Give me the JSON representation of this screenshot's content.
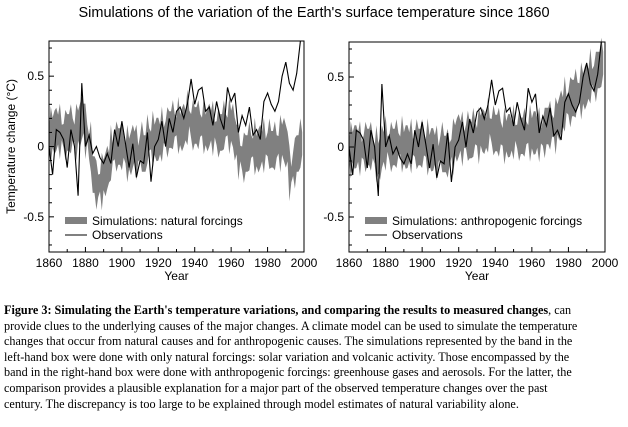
{
  "title": "Simulations of the variation of the Earth's surface temperature since 1860",
  "caption": {
    "bold": "Figure 3: Simulating the Earth's temperature variations, and comparing the results to measured changes",
    "lines": [
      ", can",
      "provide clues to the underlying causes of the major changes.  A climate model can be used to simulate the temperature",
      "changes that occur from natural causes and for anthropogenic causes.  The simulations represented by the band in the",
      "left-hand box were done with only natural forcings: solar variation and volcanic activity.  Those encompassed by the",
      "band in the right-hand box were done with anthropogenic forcings: greenhouse gases and aerosols.  For the latter, the",
      "comparison provides a plausible explanation for a major part of the observed temperature changes over the past",
      "century.  The discrepancy is too large to be explained through model estimates of natural variability alone."
    ]
  },
  "chart_data": [
    {
      "type": "area",
      "xlabel": "Year",
      "ylabel": "Temperature change (°C)",
      "xlim": [
        1860,
        2000
      ],
      "ylim": [
        -0.75,
        0.75
      ],
      "xticks": [
        "1860",
        "1880",
        "1900",
        "1920",
        "1940",
        "1960",
        "1980",
        "2000"
      ],
      "yticks": [
        {
          "v": 0.5,
          "label": "0.5"
        },
        {
          "v": 0,
          "label": "0"
        },
        {
          "v": -0.5,
          "label": "-0.5"
        }
      ],
      "legend": {
        "band": "Simulations: natural forcings",
        "line": "Observations",
        "position": "bottom-left"
      },
      "band_color": "#808080",
      "line_color": "#000000",
      "band": {
        "years_start": 1860,
        "step": 2,
        "half_width": 0.13,
        "center": [
          0.08,
          0.1,
          0.12,
          0.1,
          0.08,
          0.1,
          0.12,
          0.1,
          0.15,
          0.2,
          0.1,
          0.0,
          -0.2,
          -0.28,
          -0.25,
          -0.2,
          -0.15,
          -0.05,
          0.0,
          0.0,
          0.0,
          -0.05,
          -0.05,
          0.0,
          -0.05,
          0.0,
          -0.05,
          0.05,
          0.05,
          0.05,
          0.05,
          0.08,
          0.1,
          0.12,
          0.15,
          0.15,
          0.12,
          0.15,
          0.2,
          0.15,
          0.15,
          0.15,
          0.15,
          0.12,
          0.15,
          0.12,
          0.1,
          0.1,
          0.15,
          0.15,
          0.15,
          0.05,
          -0.05,
          -0.08,
          -0.05,
          0.0,
          0.0,
          -0.03,
          0.0,
          0.0,
          0.02,
          -0.02,
          0.0,
          0.02,
          0.05,
          0.0,
          -0.2,
          -0.12,
          -0.05,
          0.02
        ]
      },
      "observations": {
        "years_start": 1860,
        "step": 2,
        "values": [
          0.0,
          -0.2,
          0.12,
          0.1,
          0.05,
          -0.15,
          0.12,
          0.0,
          -0.35,
          0.45,
          0.0,
          0.08,
          -0.05,
          0.0,
          -0.08,
          -0.12,
          -0.05,
          -0.12,
          0.12,
          0.0,
          0.18,
          0.02,
          -0.15,
          0.02,
          -0.22,
          -0.1,
          -0.12,
          0.1,
          -0.25,
          0.0,
          0.05,
          0.18,
          0.0,
          0.2,
          0.1,
          0.25,
          0.28,
          0.2,
          0.3,
          0.48,
          0.3,
          0.4,
          0.42,
          0.25,
          0.28,
          0.15,
          0.32,
          0.2,
          0.12,
          0.42,
          0.32,
          0.38,
          0.1,
          0.22,
          0.15,
          0.28,
          0.08,
          0.12,
          0.05,
          0.32,
          0.38,
          0.3,
          0.25,
          0.32,
          0.5,
          0.6,
          0.45,
          0.4,
          0.52,
          0.75
        ]
      }
    },
    {
      "type": "area",
      "xlabel": "Year",
      "ylabel": "",
      "xlim": [
        1860,
        2000
      ],
      "ylim": [
        -0.75,
        0.75
      ],
      "xticks": [
        "1860",
        "1880",
        "1900",
        "1920",
        "1940",
        "1960",
        "1980",
        "2000"
      ],
      "yticks": [
        {
          "v": 0.5,
          "label": "0.5"
        },
        {
          "v": 0,
          "label": "0"
        },
        {
          "v": -0.5,
          "label": "-0.5"
        }
      ],
      "legend": {
        "band": "Simulations: anthropogenic forcings",
        "line": "Observations",
        "position": "bottom-left"
      },
      "band_color": "#808080",
      "line_color": "#000000",
      "band": {
        "years_start": 1860,
        "step": 2,
        "half_width": 0.13,
        "center": [
          -0.02,
          0.0,
          0.0,
          -0.02,
          0.0,
          0.0,
          0.0,
          -0.05,
          -0.08,
          0.0,
          0.02,
          0.0,
          0.0,
          0.02,
          0.02,
          0.0,
          0.0,
          0.0,
          0.02,
          0.0,
          0.02,
          0.0,
          -0.02,
          -0.02,
          -0.05,
          0.0,
          -0.05,
          -0.05,
          0.0,
          0.05,
          0.08,
          0.05,
          0.08,
          0.05,
          0.1,
          0.08,
          0.12,
          0.1,
          0.15,
          0.12,
          0.1,
          0.1,
          0.08,
          0.08,
          0.08,
          0.1,
          0.08,
          0.08,
          0.1,
          0.1,
          0.1,
          0.1,
          0.08,
          0.1,
          0.15,
          0.15,
          0.15,
          0.2,
          0.25,
          0.3,
          0.32,
          0.35,
          0.38,
          0.4,
          0.42,
          0.45,
          0.5,
          0.5,
          0.55,
          0.6
        ]
      },
      "observations": {
        "years_start": 1860,
        "step": 2,
        "values": [
          0.0,
          -0.2,
          0.12,
          0.1,
          0.05,
          -0.15,
          0.12,
          0.0,
          -0.35,
          0.45,
          0.0,
          0.08,
          -0.05,
          0.0,
          -0.08,
          -0.12,
          -0.05,
          -0.12,
          0.12,
          0.0,
          0.18,
          0.02,
          -0.15,
          0.02,
          -0.22,
          -0.1,
          -0.12,
          0.1,
          -0.25,
          0.0,
          0.05,
          0.18,
          0.0,
          0.2,
          0.1,
          0.25,
          0.28,
          0.2,
          0.3,
          0.48,
          0.3,
          0.4,
          0.42,
          0.25,
          0.28,
          0.15,
          0.32,
          0.2,
          0.12,
          0.42,
          0.32,
          0.38,
          0.1,
          0.22,
          0.15,
          0.28,
          0.08,
          0.12,
          0.05,
          0.32,
          0.38,
          0.3,
          0.25,
          0.32,
          0.5,
          0.6,
          0.45,
          0.4,
          0.52,
          0.75
        ]
      }
    }
  ]
}
